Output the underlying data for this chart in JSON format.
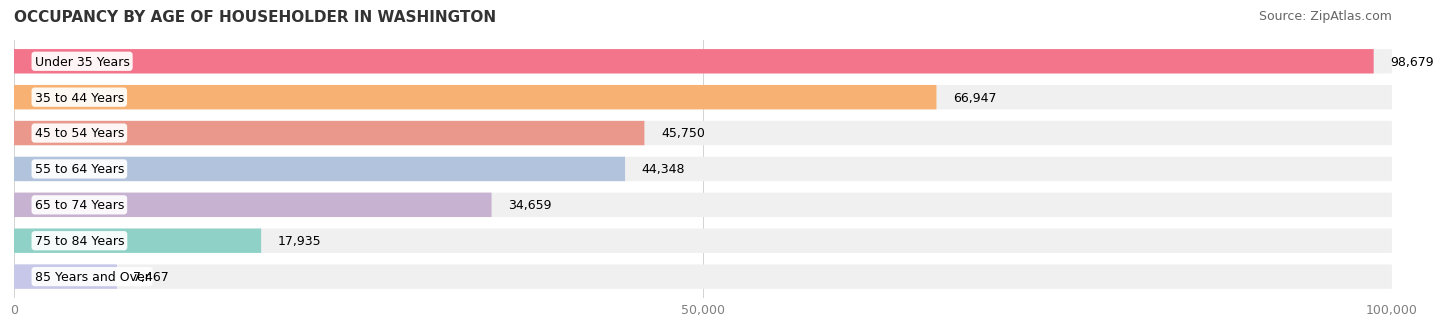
{
  "title": "OCCUPANCY BY AGE OF HOUSEHOLDER IN WASHINGTON",
  "source": "Source: ZipAtlas.com",
  "categories": [
    "Under 35 Years",
    "35 to 44 Years",
    "45 to 54 Years",
    "55 to 64 Years",
    "65 to 74 Years",
    "75 to 84 Years",
    "85 Years and Over"
  ],
  "values": [
    98679,
    66947,
    45750,
    44348,
    34659,
    17935,
    7467
  ],
  "bar_colors": [
    "#F4607A",
    "#F9A85D",
    "#E8897A",
    "#A8BBDB",
    "#C2A8CC",
    "#7FCCC0",
    "#C0C0E8"
  ],
  "bar_bg_color": "#F0F0F0",
  "xlim": [
    0,
    100000
  ],
  "xticks": [
    0,
    50000,
    100000
  ],
  "xtick_labels": [
    "0",
    "50,000",
    "100,000"
  ],
  "title_fontsize": 11,
  "source_fontsize": 9,
  "label_fontsize": 9,
  "value_fontsize": 9,
  "background_color": "#FFFFFF",
  "bar_height": 0.68,
  "label_bg_color": "#FFFFFF"
}
